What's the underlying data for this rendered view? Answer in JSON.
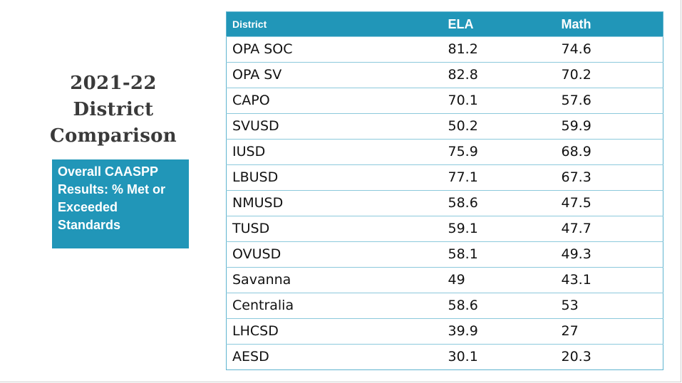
{
  "title": {
    "line1": "2021-22",
    "line2": "District",
    "line3": "Comparison"
  },
  "callout": {
    "text": "Overall CAASPP Results: % Met or Exceeded Standards"
  },
  "table": {
    "headers": [
      "District",
      "ELA",
      "Math"
    ],
    "rows": [
      [
        "OPA SOC",
        "81.2",
        "74.6"
      ],
      [
        "OPA SV",
        "82.8",
        "70.2"
      ],
      [
        "CAPO",
        "70.1",
        "57.6"
      ],
      [
        "SVUSD",
        "50.2",
        "59.9"
      ],
      [
        "IUSD",
        "75.9",
        "68.9"
      ],
      [
        "LBUSD",
        "77.1",
        "67.3"
      ],
      [
        "NMUSD",
        "58.6",
        "47.5"
      ],
      [
        "TUSD",
        "59.1",
        "47.7"
      ],
      [
        "OVUSD",
        "58.1",
        "49.3"
      ],
      [
        "Savanna",
        "49",
        "43.1"
      ],
      [
        "Centralia",
        "58.6",
        "53"
      ],
      [
        "LHCSD",
        "39.9",
        "27"
      ],
      [
        "AESD",
        "30.1",
        "20.3"
      ]
    ]
  },
  "colors": {
    "accent": "#2196b8",
    "title_text": "#3a3a3a"
  }
}
